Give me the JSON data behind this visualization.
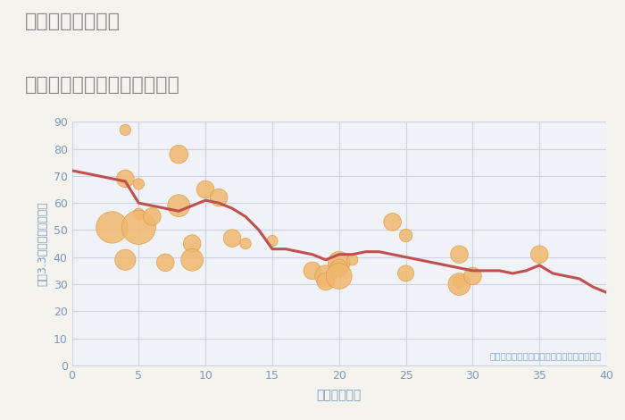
{
  "title_line1": "千葉県野田市柳沢",
  "title_line2": "築年数別中古マンション価格",
  "xlabel": "築年数（年）",
  "ylabel": "坪（3.3㎡）単価（万円）",
  "bg_color": "#f5f3ee",
  "plot_bg_color": "#f0f2f8",
  "grid_color": "#cdd3e0",
  "line_color": "#c0504d",
  "scatter_color": "#f0b86e",
  "scatter_edge_color": "#d9963a",
  "title_color": "#888888",
  "tick_color": "#7a9abf",
  "label_color": "#7a9abf",
  "annotation_color": "#7aaad0",
  "annotation": "円の大きさは、取引のあった物件面積を示す",
  "xlim": [
    0,
    40
  ],
  "ylim": [
    0,
    90
  ],
  "xticks": [
    0,
    5,
    10,
    15,
    20,
    25,
    30,
    35,
    40
  ],
  "yticks": [
    0,
    10,
    20,
    30,
    40,
    50,
    60,
    70,
    80,
    90
  ],
  "line_x": [
    0,
    1,
    2,
    3,
    4,
    5,
    6,
    7,
    8,
    9,
    10,
    11,
    12,
    13,
    14,
    15,
    16,
    17,
    18,
    19,
    20,
    21,
    22,
    23,
    24,
    25,
    26,
    27,
    28,
    29,
    30,
    31,
    32,
    33,
    34,
    35,
    36,
    37,
    38,
    39,
    40
  ],
  "line_y": [
    72,
    71,
    70,
    69,
    68,
    60,
    59,
    58,
    57,
    59,
    61,
    60,
    58,
    55,
    50,
    43,
    43,
    42,
    41,
    39,
    41,
    41,
    42,
    42,
    41,
    40,
    39,
    38,
    37,
    36,
    35,
    35,
    35,
    34,
    35,
    37,
    34,
    33,
    32,
    29,
    27
  ],
  "scatter_x": [
    3,
    4,
    4,
    4,
    5,
    5,
    5,
    6,
    7,
    8,
    8,
    9,
    9,
    10,
    11,
    12,
    13,
    15,
    18,
    19,
    19,
    20,
    20,
    20,
    21,
    24,
    25,
    25,
    29,
    29,
    29,
    30,
    35
  ],
  "scatter_y": [
    51,
    87,
    69,
    39,
    67,
    56,
    51,
    55,
    38,
    78,
    59,
    45,
    39,
    65,
    62,
    47,
    45,
    46,
    35,
    33,
    31,
    38,
    36,
    33,
    39,
    53,
    48,
    34,
    41,
    31,
    30,
    33,
    41
  ],
  "scatter_size": [
    650,
    80,
    200,
    280,
    80,
    80,
    750,
    200,
    200,
    220,
    320,
    200,
    320,
    200,
    200,
    200,
    80,
    80,
    200,
    300,
    200,
    320,
    200,
    430,
    80,
    200,
    110,
    170,
    200,
    110,
    320,
    200,
    200
  ]
}
